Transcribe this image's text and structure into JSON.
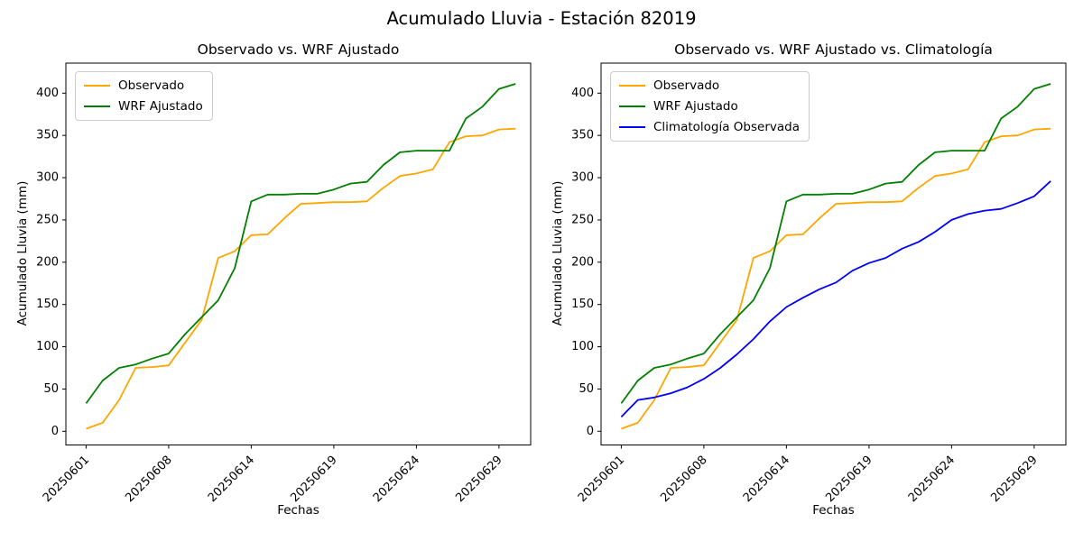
{
  "figure": {
    "suptitle": "Acumulado Lluvia - Estación 82019"
  },
  "chart_data": [
    {
      "type": "line",
      "title": "Observado vs. WRF Ajustado",
      "xlabel": "Fechas",
      "ylabel": "Acumulado Lluvia (mm)",
      "x_index": [
        0,
        1,
        2,
        3,
        4,
        5,
        6,
        7,
        8,
        9,
        10,
        11,
        12,
        13,
        14,
        15,
        16,
        17,
        18,
        19,
        20,
        21,
        22,
        23,
        24,
        25,
        26
      ],
      "x_tick_positions": [
        0,
        5,
        10,
        15,
        20,
        25
      ],
      "x_tick_labels": [
        "20250601",
        "20250608",
        "20250614",
        "20250619",
        "20250624",
        "20250629"
      ],
      "y_ticks": [
        0,
        50,
        100,
        150,
        200,
        250,
        300,
        350,
        400
      ],
      "ylim": [
        -16,
        435
      ],
      "grid": false,
      "legend_position": "upper left",
      "series": [
        {
          "name": "Observado",
          "color": "#FFA500",
          "values": [
            3,
            10,
            37,
            75,
            76,
            78,
            105,
            132,
            205,
            213,
            232,
            233,
            252,
            269,
            270,
            271,
            271,
            272,
            288,
            302,
            305,
            310,
            342,
            349,
            350,
            357,
            358
          ]
        },
        {
          "name": "WRF Ajustado",
          "color": "#008000",
          "values": [
            33,
            60,
            75,
            79,
            86,
            92,
            115,
            135,
            155,
            193,
            272,
            280,
            280,
            281,
            281,
            286,
            293,
            295,
            315,
            330,
            332,
            332,
            332,
            370,
            384,
            405,
            411
          ]
        }
      ]
    },
    {
      "type": "line",
      "title": "Observado vs. WRF Ajustado vs. Climatología",
      "xlabel": "Fechas",
      "ylabel": "Acumulado Lluvia (mm)",
      "x_index": [
        0,
        1,
        2,
        3,
        4,
        5,
        6,
        7,
        8,
        9,
        10,
        11,
        12,
        13,
        14,
        15,
        16,
        17,
        18,
        19,
        20,
        21,
        22,
        23,
        24,
        25,
        26
      ],
      "x_tick_positions": [
        0,
        5,
        10,
        15,
        20,
        25
      ],
      "x_tick_labels": [
        "20250601",
        "20250608",
        "20250614",
        "20250619",
        "20250624",
        "20250629"
      ],
      "y_ticks": [
        0,
        50,
        100,
        150,
        200,
        250,
        300,
        350,
        400
      ],
      "ylim": [
        -16,
        435
      ],
      "grid": false,
      "legend_position": "upper left",
      "series": [
        {
          "name": "Observado",
          "color": "#FFA500",
          "values": [
            3,
            10,
            37,
            75,
            76,
            78,
            105,
            132,
            205,
            213,
            232,
            233,
            252,
            269,
            270,
            271,
            271,
            272,
            288,
            302,
            305,
            310,
            342,
            349,
            350,
            357,
            358
          ]
        },
        {
          "name": "WRF Ajustado",
          "color": "#008000",
          "values": [
            33,
            60,
            75,
            79,
            86,
            92,
            115,
            135,
            155,
            193,
            272,
            280,
            280,
            281,
            281,
            286,
            293,
            295,
            315,
            330,
            332,
            332,
            332,
            370,
            384,
            405,
            411
          ]
        },
        {
          "name": "Climatología Observada",
          "color": "#0000FF",
          "values": [
            17,
            37,
            40,
            45,
            52,
            62,
            75,
            91,
            109,
            130,
            147,
            158,
            168,
            176,
            190,
            199,
            205,
            216,
            224,
            236,
            250,
            257,
            261,
            263,
            270,
            278,
            296
          ]
        }
      ]
    }
  ]
}
